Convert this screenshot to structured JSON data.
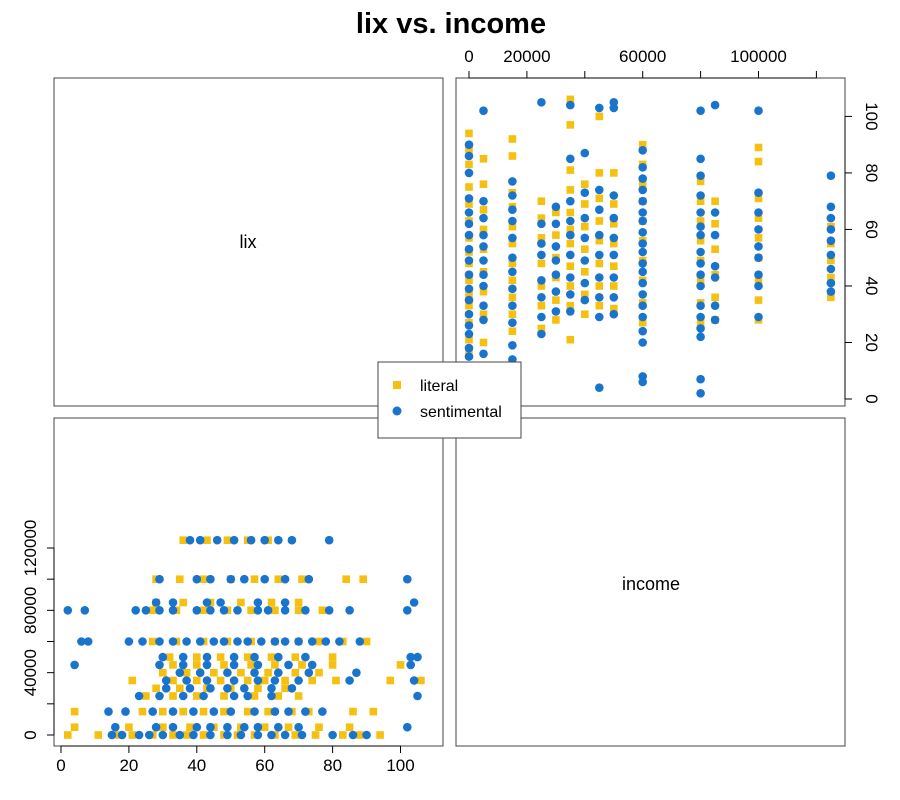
{
  "chart_data": {
    "type": "scatter",
    "title": "lix vs. income",
    "diagonal_labels": [
      "lix",
      "income"
    ],
    "colors": {
      "literal": "#F5C010",
      "sentimental": "#1874CD"
    },
    "legend": {
      "placement": "center",
      "entries": [
        "literal",
        "sentimental"
      ]
    },
    "axes": {
      "lix": {
        "range": [
          0,
          106
        ],
        "ticks": [
          0,
          20,
          40,
          60,
          80,
          100
        ]
      },
      "income": {
        "range": [
          0,
          125000
        ],
        "ticks": [
          0,
          40000,
          80000,
          120000
        ],
        "top_ticks": [
          0,
          20000,
          60000,
          100000
        ]
      }
    },
    "panels": [
      {
        "position": "upper-right",
        "x_variable": "income",
        "y_variable": "lix"
      },
      {
        "position": "lower-left",
        "x_variable": "lix",
        "y_variable": "income"
      }
    ],
    "series": [
      {
        "name": "literal",
        "marker": "square",
        "points": [
          [
            2,
            0
          ],
          [
            11,
            0
          ],
          [
            17,
            0
          ],
          [
            21,
            0
          ],
          [
            27,
            0
          ],
          [
            33,
            0
          ],
          [
            37,
            0
          ],
          [
            42,
            0
          ],
          [
            48,
            0
          ],
          [
            52,
            0
          ],
          [
            57,
            0
          ],
          [
            63,
            0
          ],
          [
            69,
            0
          ],
          [
            75,
            0
          ],
          [
            83,
            0
          ],
          [
            88,
            0
          ],
          [
            94,
            0
          ],
          [
            4,
            5000
          ],
          [
            20,
            5000
          ],
          [
            30,
            5000
          ],
          [
            38,
            5000
          ],
          [
            45,
            5000
          ],
          [
            53,
            5000
          ],
          [
            60,
            5000
          ],
          [
            67,
            5000
          ],
          [
            76,
            5000
          ],
          [
            85,
            5000
          ],
          [
            4,
            15000
          ],
          [
            24,
            15000
          ],
          [
            30,
            15000
          ],
          [
            36,
            15000
          ],
          [
            42,
            15000
          ],
          [
            48,
            15000
          ],
          [
            55,
            15000
          ],
          [
            61,
            15000
          ],
          [
            68,
            15000
          ],
          [
            73,
            15000
          ],
          [
            86,
            15000
          ],
          [
            92,
            15000
          ],
          [
            25,
            25000
          ],
          [
            33,
            25000
          ],
          [
            40,
            25000
          ],
          [
            48,
            25000
          ],
          [
            57,
            25000
          ],
          [
            64,
            25000
          ],
          [
            70,
            25000
          ],
          [
            28,
            30000
          ],
          [
            35,
            30000
          ],
          [
            43,
            30000
          ],
          [
            50,
            30000
          ],
          [
            58,
            30000
          ],
          [
            66,
            30000
          ],
          [
            21,
            35000
          ],
          [
            33,
            35000
          ],
          [
            40,
            35000
          ],
          [
            47,
            35000
          ],
          [
            55,
            35000
          ],
          [
            60,
            35000
          ],
          [
            66,
            35000
          ],
          [
            74,
            35000
          ],
          [
            81,
            35000
          ],
          [
            97,
            35000
          ],
          [
            106,
            35000
          ],
          [
            30,
            40000
          ],
          [
            37,
            40000
          ],
          [
            45,
            40000
          ],
          [
            53,
            40000
          ],
          [
            61,
            40000
          ],
          [
            69,
            40000
          ],
          [
            76,
            40000
          ],
          [
            33,
            45000
          ],
          [
            40,
            45000
          ],
          [
            48,
            45000
          ],
          [
            56,
            45000
          ],
          [
            63,
            45000
          ],
          [
            71,
            45000
          ],
          [
            80,
            45000
          ],
          [
            100,
            45000
          ],
          [
            32,
            50000
          ],
          [
            40,
            50000
          ],
          [
            47,
            50000
          ],
          [
            55,
            50000
          ],
          [
            62,
            50000
          ],
          [
            69,
            50000
          ],
          [
            80,
            50000
          ],
          [
            27,
            60000
          ],
          [
            34,
            60000
          ],
          [
            42,
            60000
          ],
          [
            49,
            60000
          ],
          [
            56,
            60000
          ],
          [
            63,
            60000
          ],
          [
            70,
            60000
          ],
          [
            76,
            60000
          ],
          [
            83,
            60000
          ],
          [
            90,
            60000
          ],
          [
            27,
            80000
          ],
          [
            34,
            80000
          ],
          [
            42,
            80000
          ],
          [
            49,
            80000
          ],
          [
            56,
            80000
          ],
          [
            63,
            80000
          ],
          [
            70,
            80000
          ],
          [
            77,
            80000
          ],
          [
            28,
            85000
          ],
          [
            36,
            85000
          ],
          [
            44,
            85000
          ],
          [
            53,
            85000
          ],
          [
            62,
            85000
          ],
          [
            70,
            85000
          ],
          [
            28,
            100000
          ],
          [
            35,
            100000
          ],
          [
            42,
            100000
          ],
          [
            50,
            100000
          ],
          [
            57,
            100000
          ],
          [
            64,
            100000
          ],
          [
            71,
            100000
          ],
          [
            84,
            100000
          ],
          [
            89,
            100000
          ],
          [
            36,
            125000
          ],
          [
            43,
            125000
          ],
          [
            49,
            125000
          ],
          [
            55,
            125000
          ],
          [
            61,
            125000
          ]
        ]
      },
      {
        "name": "sentimental",
        "marker": "circle",
        "points": [
          [
            15,
            0
          ],
          [
            18,
            0
          ],
          [
            23,
            0
          ],
          [
            26,
            0
          ],
          [
            30,
            0
          ],
          [
            35,
            0
          ],
          [
            39,
            0
          ],
          [
            44,
            0
          ],
          [
            49,
            0
          ],
          [
            53,
            0
          ],
          [
            58,
            0
          ],
          [
            62,
            0
          ],
          [
            66,
            0
          ],
          [
            71,
            0
          ],
          [
            80,
            0
          ],
          [
            86,
            0
          ],
          [
            90,
            0
          ],
          [
            16,
            5000
          ],
          [
            28,
            5000
          ],
          [
            33,
            5000
          ],
          [
            40,
            5000
          ],
          [
            44,
            5000
          ],
          [
            49,
            5000
          ],
          [
            54,
            5000
          ],
          [
            58,
            5000
          ],
          [
            64,
            5000
          ],
          [
            70,
            5000
          ],
          [
            102,
            5000
          ],
          [
            14,
            15000
          ],
          [
            19,
            15000
          ],
          [
            27,
            15000
          ],
          [
            33,
            15000
          ],
          [
            39,
            15000
          ],
          [
            45,
            15000
          ],
          [
            50,
            15000
          ],
          [
            57,
            15000
          ],
          [
            63,
            15000
          ],
          [
            67,
            15000
          ],
          [
            72,
            15000
          ],
          [
            77,
            15000
          ],
          [
            23,
            25000
          ],
          [
            29,
            25000
          ],
          [
            36,
            25000
          ],
          [
            42,
            25000
          ],
          [
            51,
            25000
          ],
          [
            55,
            25000
          ],
          [
            62,
            25000
          ],
          [
            105,
            25000
          ],
          [
            31,
            30000
          ],
          [
            38,
            30000
          ],
          [
            44,
            30000
          ],
          [
            49,
            30000
          ],
          [
            54,
            30000
          ],
          [
            62,
            30000
          ],
          [
            68,
            30000
          ],
          [
            31,
            35000
          ],
          [
            37,
            35000
          ],
          [
            43,
            35000
          ],
          [
            51,
            35000
          ],
          [
            58,
            35000
          ],
          [
            63,
            35000
          ],
          [
            70,
            35000
          ],
          [
            85,
            35000
          ],
          [
            104,
            35000
          ],
          [
            35,
            40000
          ],
          [
            41,
            40000
          ],
          [
            49,
            40000
          ],
          [
            57,
            40000
          ],
          [
            64,
            40000
          ],
          [
            73,
            40000
          ],
          [
            87,
            40000
          ],
          [
            4,
            45000
          ],
          [
            29,
            45000
          ],
          [
            36,
            45000
          ],
          [
            43,
            45000
          ],
          [
            51,
            45000
          ],
          [
            58,
            45000
          ],
          [
            67,
            45000
          ],
          [
            74,
            45000
          ],
          [
            103,
            45000
          ],
          [
            30,
            50000
          ],
          [
            36,
            50000
          ],
          [
            43,
            50000
          ],
          [
            51,
            50000
          ],
          [
            57,
            50000
          ],
          [
            64,
            50000
          ],
          [
            72,
            50000
          ],
          [
            103,
            50000
          ],
          [
            105,
            50000
          ],
          [
            6,
            60000
          ],
          [
            8,
            60000
          ],
          [
            20,
            60000
          ],
          [
            24,
            60000
          ],
          [
            29,
            60000
          ],
          [
            33,
            60000
          ],
          [
            37,
            60000
          ],
          [
            41,
            60000
          ],
          [
            45,
            60000
          ],
          [
            48,
            60000
          ],
          [
            52,
            60000
          ],
          [
            55,
            60000
          ],
          [
            59,
            60000
          ],
          [
            63,
            60000
          ],
          [
            66,
            60000
          ],
          [
            70,
            60000
          ],
          [
            74,
            60000
          ],
          [
            78,
            60000
          ],
          [
            82,
            60000
          ],
          [
            88,
            60000
          ],
          [
            2,
            80000
          ],
          [
            7,
            80000
          ],
          [
            22,
            80000
          ],
          [
            25,
            80000
          ],
          [
            29,
            80000
          ],
          [
            33,
            80000
          ],
          [
            40,
            80000
          ],
          [
            44,
            80000
          ],
          [
            48,
            80000
          ],
          [
            52,
            80000
          ],
          [
            58,
            80000
          ],
          [
            61,
            80000
          ],
          [
            66,
            80000
          ],
          [
            72,
            80000
          ],
          [
            79,
            80000
          ],
          [
            85,
            80000
          ],
          [
            102,
            80000
          ],
          [
            28,
            85000
          ],
          [
            33,
            85000
          ],
          [
            43,
            85000
          ],
          [
            47,
            85000
          ],
          [
            58,
            85000
          ],
          [
            66,
            85000
          ],
          [
            104,
            85000
          ],
          [
            29,
            100000
          ],
          [
            40,
            100000
          ],
          [
            44,
            100000
          ],
          [
            50,
            100000
          ],
          [
            54,
            100000
          ],
          [
            60,
            100000
          ],
          [
            66,
            100000
          ],
          [
            73,
            100000
          ],
          [
            102,
            100000
          ],
          [
            38,
            125000
          ],
          [
            41,
            125000
          ],
          [
            46,
            125000
          ],
          [
            51,
            125000
          ],
          [
            56,
            125000
          ],
          [
            60,
            125000
          ],
          [
            64,
            125000
          ],
          [
            68,
            125000
          ],
          [
            79,
            125000
          ]
        ]
      }
    ]
  }
}
